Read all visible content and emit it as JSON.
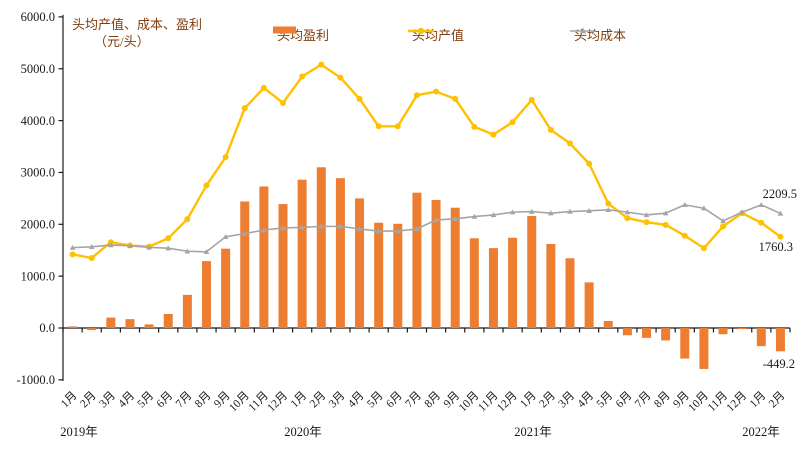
{
  "chart_data": {
    "type": "bar",
    "combo": "bar+line",
    "title_lines": [
      "头均产值、成本、盈利",
      "（元/头）"
    ],
    "y_axis": {
      "min": -1000,
      "max": 6000,
      "step": 1000,
      "tick_labels": [
        "6000.0",
        "5000.0",
        "4000.0",
        "3000.0",
        "2000.0",
        "1000.0",
        "0.0",
        "-1000.0"
      ]
    },
    "x_months": [
      "1月",
      "2月",
      "3月",
      "4月",
      "5月",
      "6月",
      "7月",
      "8月",
      "9月",
      "10月",
      "11月",
      "12月",
      "1月",
      "2月",
      "3月",
      "4月",
      "5月",
      "6月",
      "7月",
      "8月",
      "9月",
      "10月",
      "11月",
      "12月",
      "1月",
      "2月",
      "3月",
      "4月",
      "5月",
      "6月",
      "7月",
      "8月",
      "9月",
      "10月",
      "11月",
      "12月",
      "1月",
      "2月"
    ],
    "year_labels": [
      {
        "label": "2019年",
        "month_index": 0
      },
      {
        "label": "2020年",
        "month_index": 12
      },
      {
        "label": "2021年",
        "month_index": 24
      },
      {
        "label": "2022年",
        "month_index": 36
      }
    ],
    "series": [
      {
        "name": "头均盈利",
        "type": "bar",
        "color": "#ED7D31",
        "values": [
          30,
          -40,
          200,
          170,
          70,
          270,
          640,
          1290,
          1530,
          2440,
          2730,
          2390,
          2860,
          3100,
          2890,
          2500,
          2030,
          2010,
          2610,
          2470,
          2320,
          1730,
          1540,
          1740,
          2160,
          1620,
          1345,
          880,
          135,
          -140,
          -190,
          -240,
          -590,
          -790,
          -120,
          -20,
          -350,
          -449.2
        ]
      },
      {
        "name": "头均产值",
        "type": "line",
        "color": "#FFC000",
        "marker": "circle",
        "values": [
          1420,
          1350,
          1655,
          1590,
          1570,
          1730,
          2100,
          2750,
          3295,
          4240,
          4630,
          4340,
          4850,
          5080,
          4830,
          4420,
          3890,
          3890,
          4490,
          4560,
          4420,
          3880,
          3730,
          3970,
          4400,
          3820,
          3560,
          3170,
          2400,
          2120,
          2040,
          1990,
          1780,
          1540,
          1960,
          2215,
          2030,
          1760.3
        ]
      },
      {
        "name": "头均成本",
        "type": "line",
        "color": "#A5A5A5",
        "marker": "triangle",
        "values": [
          1550,
          1565,
          1600,
          1585,
          1555,
          1540,
          1480,
          1470,
          1760,
          1820,
          1890,
          1930,
          1940,
          1960,
          1960,
          1910,
          1870,
          1870,
          1910,
          2085,
          2105,
          2150,
          2180,
          2235,
          2245,
          2215,
          2245,
          2260,
          2280,
          2235,
          2180,
          2215,
          2375,
          2310,
          2065,
          2235,
          2375,
          2209.5
        ]
      }
    ],
    "end_labels": [
      {
        "series": "头均成本",
        "text": "2209.5"
      },
      {
        "series": "头均产值",
        "text": "1760.3"
      },
      {
        "series": "头均盈利",
        "text": "-449.2"
      }
    ],
    "grid": "off",
    "legend_position": "top"
  }
}
